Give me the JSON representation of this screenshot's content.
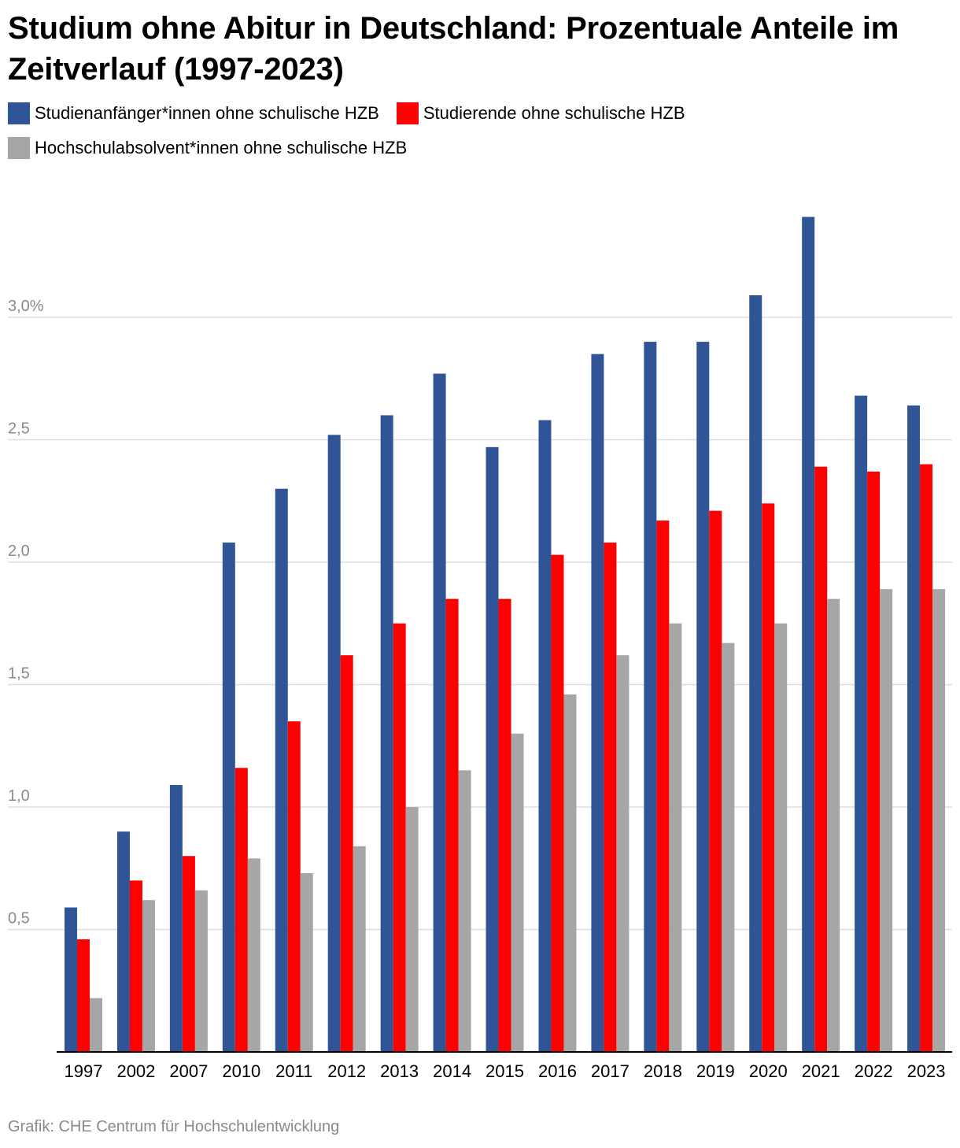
{
  "title": "Studium ohne Abitur in Deutschland: Prozentuale Anteile im Zeitverlauf (1997-2023)",
  "footer": "Grafik: CHE Centrum für Hochschulentwicklung",
  "chart_data": {
    "type": "bar",
    "categories": [
      "1997",
      "2002",
      "2007",
      "2010",
      "2011",
      "2012",
      "2013",
      "2014",
      "2015",
      "2016",
      "2017",
      "2018",
      "2019",
      "2020",
      "2021",
      "2022",
      "2023"
    ],
    "series": [
      {
        "name": "Studienanfänger*innen ohne schulische HZB",
        "color": "#2f5597",
        "values": [
          0.59,
          0.9,
          1.09,
          2.08,
          2.3,
          2.52,
          2.6,
          2.77,
          2.47,
          2.58,
          2.85,
          2.9,
          2.9,
          3.09,
          3.41,
          2.68,
          2.64
        ]
      },
      {
        "name": "Studierende ohne schulische HZB",
        "color": "#ff0000",
        "values": [
          0.46,
          0.7,
          0.8,
          1.16,
          1.35,
          1.62,
          1.75,
          1.85,
          1.85,
          2.03,
          2.08,
          2.17,
          2.21,
          2.24,
          2.39,
          2.37,
          2.4
        ]
      },
      {
        "name": "Hochschulabsolvent*innen ohne schulische HZB",
        "color": "#a6a6a6",
        "values": [
          0.22,
          0.62,
          0.66,
          0.79,
          0.73,
          0.84,
          1.0,
          1.15,
          1.3,
          1.46,
          1.62,
          1.75,
          1.67,
          1.75,
          1.85,
          1.89,
          1.89
        ]
      }
    ],
    "ylim": [
      0,
      3.5
    ],
    "yticks": [
      {
        "value": 0.5,
        "label": "0,5"
      },
      {
        "value": 1.0,
        "label": "1,0"
      },
      {
        "value": 1.5,
        "label": "1,5"
      },
      {
        "value": 2.0,
        "label": "2,0"
      },
      {
        "value": 2.5,
        "label": "2,5"
      },
      {
        "value": 3.0,
        "label": "3,0%"
      }
    ],
    "grid": true,
    "legend": "top-left"
  }
}
